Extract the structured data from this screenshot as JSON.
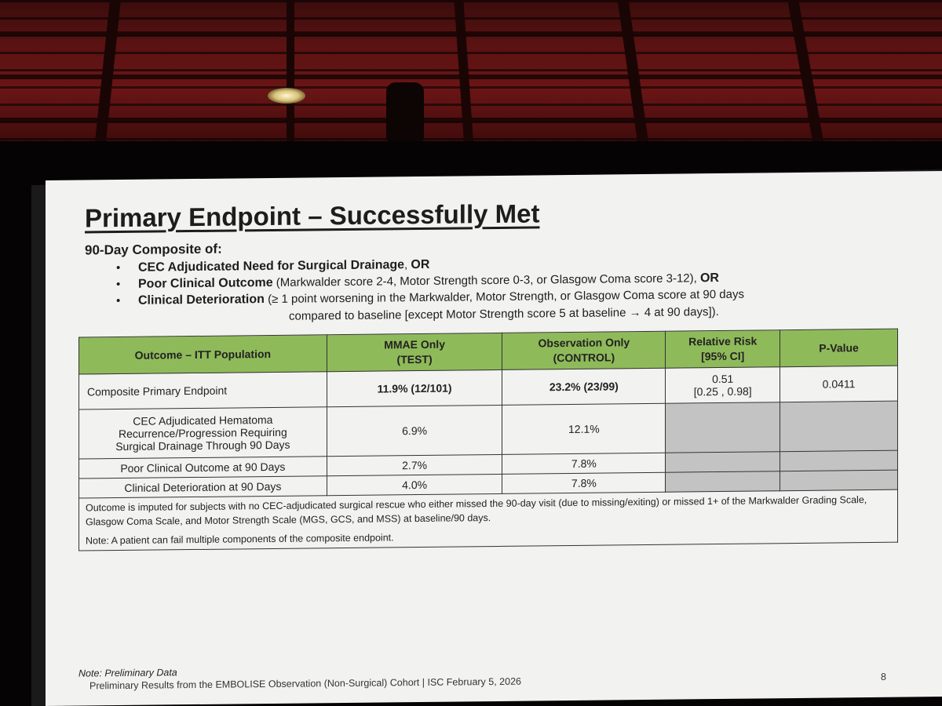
{
  "slide": {
    "title": "Primary Endpoint – Successfully Met",
    "composite_heading": "90-Day Composite of:",
    "bullets": [
      {
        "bold": "CEC Adjudicated Need for Surgical Drainage",
        "rest": ", ",
        "tail": "OR"
      },
      {
        "bold": "Poor Clinical Outcome",
        "rest": " (Markwalder score 2-4, Motor Strength score 0-3, or Glasgow Coma score 3-12), ",
        "tail": "OR"
      },
      {
        "bold": "Clinical Deterioration",
        "rest": " (≥ 1 point worsening in the Markwalder, Motor Strength, or Glasgow Coma score at 90 days",
        "tail": ""
      }
    ],
    "bullet_continuation": "compared to baseline [except Motor Strength score 5 at baseline → 4 at 90 days]).",
    "bullet_glyph": "•",
    "table": {
      "headers": {
        "outcome": "Outcome – ITT Population",
        "mmae_line1": "MMAE Only",
        "mmae_line2": "(TEST)",
        "obs_line1": "Observation Only",
        "obs_line2": "(CONTROL)",
        "rr_line1": "Relative Risk",
        "rr_line2": "[95% CI]",
        "pvalue": "P-Value"
      },
      "rows": [
        {
          "label": "Composite Primary Endpoint",
          "mmae": "11.9% (12/101)",
          "obs": "23.2% (23/99)",
          "rr_line1": "0.51",
          "rr_line2": "[0.25 , 0.98]",
          "pvalue": "0.0411"
        },
        {
          "label_line1": "CEC Adjudicated Hematoma",
          "label_line2": "Recurrence/Progression Requiring",
          "label_line3": "Surgical Drainage Through 90 Days",
          "mmae": "6.9%",
          "obs": "12.1%"
        },
        {
          "label": "Poor Clinical Outcome at 90 Days",
          "mmae": "2.7%",
          "obs": "7.8%"
        },
        {
          "label": "Clinical Deterioration at 90 Days",
          "mmae": "4.0%",
          "obs": "7.8%"
        }
      ],
      "note_imputed": "Outcome is imputed for subjects with no CEC-adjudicated surgical rescue who either missed the 90-day visit (due to missing/exiting) or missed 1+ of the Markwalder Grading Scale, Glasgow Coma Scale, and Motor Strength Scale (MGS, GCS, and MSS) at baseline/90 days.",
      "note_multiple": "Note: A patient can fail multiple components of the composite endpoint."
    },
    "footer_note": "Note: Preliminary Data",
    "footer_source": "Preliminary Results from the EMBOLISE Observation (Non-Surgical) Cohort  |  ISC February 5, 2026",
    "page_number": "8"
  },
  "colors": {
    "table_header_green": "#8fba5a",
    "gray_cell": "#c3c3c3",
    "ceiling_red": "#5a1212"
  }
}
